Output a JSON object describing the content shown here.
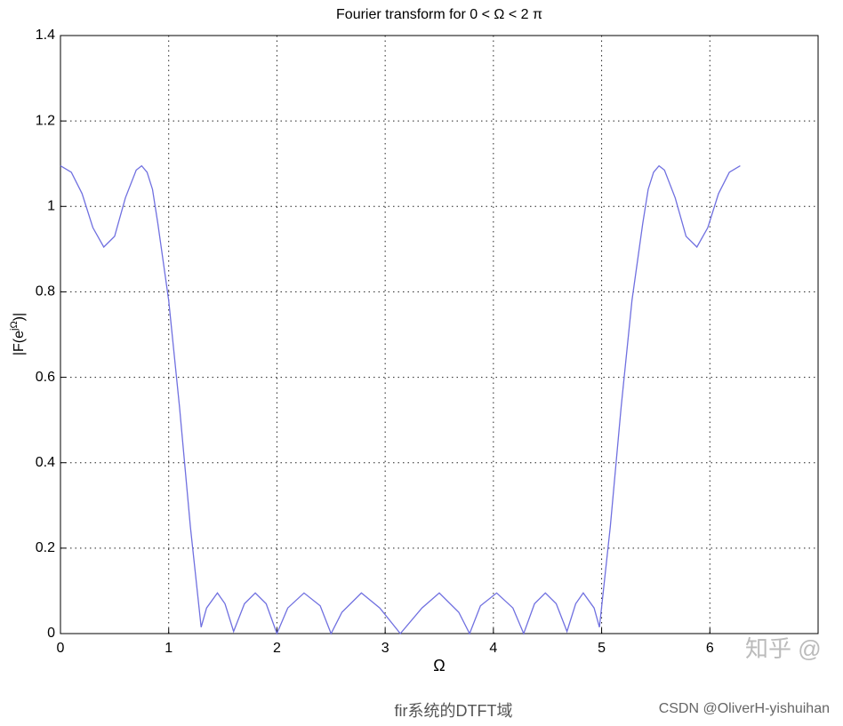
{
  "chart_data": {
    "type": "line",
    "title": "Fourier transform for 0 < Ω < 2 π",
    "x_label": "Ω",
    "y_label": "|F(e",
    "y_label_sup": "jΩ",
    "y_label_end": ")|",
    "xlim": [
      0,
      7
    ],
    "ylim": [
      0,
      1.4
    ],
    "xticks": [
      0,
      1,
      2,
      3,
      4,
      5,
      6
    ],
    "yticks": [
      0,
      0.2,
      0.4,
      0.6,
      0.8,
      1,
      1.2,
      1.4
    ],
    "grid": true,
    "series": [
      {
        "color": "#7070e0",
        "x": [
          0,
          0.1,
          0.2,
          0.3,
          0.4,
          0.5,
          0.6,
          0.7,
          0.75,
          0.8,
          0.85,
          0.9,
          1.0,
          1.1,
          1.2,
          1.3,
          1.35,
          1.45,
          1.52,
          1.6,
          1.7,
          1.8,
          1.9,
          2.0,
          2.1,
          2.25,
          2.4,
          2.5,
          2.6,
          2.78,
          2.95,
          3.14,
          3.34,
          3.5,
          3.68,
          3.78,
          3.88,
          4.03,
          4.18,
          4.28,
          4.38,
          4.48,
          4.58,
          4.68,
          4.76,
          4.83,
          4.93,
          4.98,
          5.08,
          5.18,
          5.28,
          5.38,
          5.43,
          5.48,
          5.53,
          5.58,
          5.68,
          5.78,
          5.88,
          5.98,
          6.08,
          6.18,
          6.28
        ],
        "values": [
          1.095,
          1.08,
          1.03,
          0.95,
          0.905,
          0.93,
          1.02,
          1.085,
          1.095,
          1.08,
          1.04,
          0.96,
          0.78,
          0.53,
          0.25,
          0.015,
          0.06,
          0.095,
          0.07,
          0.005,
          0.07,
          0.095,
          0.07,
          0.0,
          0.06,
          0.095,
          0.065,
          0.0,
          0.05,
          0.095,
          0.06,
          0.0,
          0.06,
          0.095,
          0.05,
          0.0,
          0.065,
          0.095,
          0.06,
          0.0,
          0.07,
          0.095,
          0.07,
          0.005,
          0.07,
          0.095,
          0.06,
          0.015,
          0.25,
          0.53,
          0.78,
          0.96,
          1.04,
          1.08,
          1.095,
          1.085,
          1.02,
          0.93,
          0.905,
          0.95,
          1.03,
          1.08,
          1.095
        ]
      }
    ]
  },
  "watermark": "知乎 @",
  "caption": "fir系统的DTFT域",
  "credit": "CSDN @OliverH-yishuihan"
}
